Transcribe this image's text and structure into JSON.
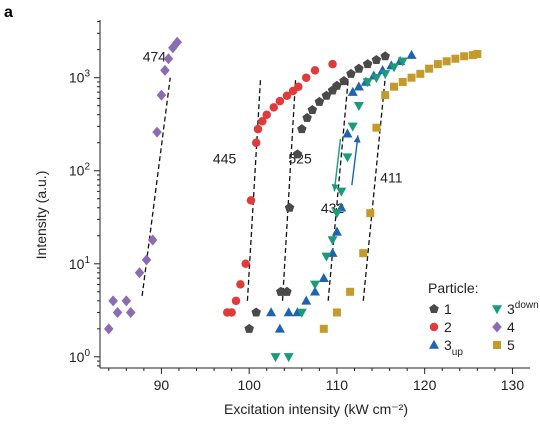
{
  "panel_label": "a",
  "chart_data": {
    "type": "scatter",
    "title": "",
    "xlabel": "Excitation intensity (kW cm⁻²)",
    "ylabel": "Intensity (a.u.)",
    "xlim": [
      83,
      132
    ],
    "ylim_log10": [
      -0.12,
      3.62
    ],
    "yscale": "log",
    "x_ticks": [
      90,
      100,
      110,
      120,
      130
    ],
    "y_ticks": [
      {
        "exp": 0,
        "base": "10",
        "sup": "0"
      },
      {
        "exp": 1,
        "base": "10",
        "sup": "1"
      },
      {
        "exp": 2,
        "base": "10",
        "sup": "2"
      },
      {
        "exp": 3,
        "base": "10",
        "sup": "3"
      }
    ],
    "legend": {
      "title": "Particle:",
      "position": "bottom-right",
      "entries": [
        {
          "series": "1",
          "label": "1"
        },
        {
          "series": "3down",
          "label": "3",
          "sub": "down"
        },
        {
          "series": "2",
          "label": "2"
        },
        {
          "series": "4",
          "label": "4"
        },
        {
          "series": "3up",
          "label": "3",
          "sub": "up"
        },
        {
          "series": "5",
          "label": "5"
        }
      ]
    },
    "annotations": [
      {
        "text": "474",
        "x": 89.2,
        "y": 1500
      },
      {
        "text": "445",
        "x": 97.2,
        "y": 120
      },
      {
        "text": "525",
        "x": 105.8,
        "y": 120
      },
      {
        "text": "432",
        "x": 109.5,
        "y": 35
      },
      {
        "text": "411",
        "x": 116.2,
        "y": 75
      }
    ],
    "threshold_lines": [
      {
        "x1": 87.8,
        "y1": 4.5,
        "x2": 91.0,
        "y2": 1000
      },
      {
        "x1": 99.8,
        "y1": 4.0,
        "x2": 101.3,
        "y2": 1000
      },
      {
        "x1": 103.8,
        "y1": 4.0,
        "x2": 105.3,
        "y2": 1000
      },
      {
        "x1": 109.0,
        "y1": 4.0,
        "x2": 111.3,
        "y2": 1000
      },
      {
        "x1": 113.0,
        "y1": 4.0,
        "x2": 115.5,
        "y2": 1000
      }
    ],
    "arrows": [
      {
        "direction": "down",
        "x1": 110.4,
        "y1": 220,
        "x2": 109.7,
        "y2": 60
      },
      {
        "direction": "up",
        "x1": 111.7,
        "y1": 70,
        "x2": 112.4,
        "y2": 240
      }
    ],
    "series": [
      {
        "name": "1",
        "marker": "pentagon",
        "color": "#4a4a4a",
        "x": [
          100,
          100.8,
          103.6,
          104.3,
          104.6,
          105.5,
          106,
          106.6,
          107.2,
          108,
          108.8,
          109.5,
          110,
          110.8,
          111.6,
          112.5,
          113.5,
          114.5,
          115.5
        ],
        "y": [
          2,
          3,
          5,
          5,
          40,
          150,
          280,
          370,
          450,
          550,
          640,
          730,
          820,
          920,
          1100,
          1250,
          1400,
          1550,
          1700
        ]
      },
      {
        "name": "2",
        "marker": "circle",
        "color": "#e13a3a",
        "x": [
          97.5,
          98,
          98.5,
          99,
          99.6,
          100.2,
          100.8,
          101,
          101.5,
          102,
          102.8,
          103.5,
          104.3,
          105,
          105.6,
          106.5,
          107.5,
          109.5
        ],
        "y": [
          3,
          3,
          4,
          6,
          10,
          48,
          200,
          280,
          340,
          400,
          480,
          560,
          640,
          720,
          800,
          1000,
          1200,
          1400
        ]
      },
      {
        "name": "3up",
        "marker": "triangle-up",
        "color": "#1f63b0",
        "x": [
          102.5,
          103.5,
          104.5,
          105.5,
          106.5,
          107.5,
          108.5,
          109.5,
          110,
          110.5,
          111.2,
          111.8,
          112.5,
          113.3,
          114.2,
          115.2,
          116.2,
          117.2,
          118.5
        ],
        "y": [
          3,
          2,
          3,
          3,
          4,
          5,
          7,
          13,
          22,
          40,
          250,
          700,
          800,
          900,
          1050,
          1200,
          1350,
          1500,
          1750
        ]
      },
      {
        "name": "3down",
        "marker": "triangle-down",
        "color": "#1a9c78",
        "x": [
          117.5,
          116.5,
          115.5,
          114.5,
          113.5,
          112.5,
          111.8,
          111.2,
          110.5,
          110,
          109.5,
          108.8,
          107.5,
          106,
          104.5,
          103
        ],
        "y": [
          1500,
          1300,
          1100,
          1000,
          900,
          500,
          300,
          140,
          60,
          35,
          18,
          12,
          6,
          3,
          1,
          1
        ]
      },
      {
        "name": "4",
        "marker": "diamond",
        "color": "#8b6bb1",
        "x": [
          84,
          84.5,
          85,
          86,
          86.5,
          87.5,
          88.3,
          89,
          89.5,
          90,
          90.4,
          90.8,
          91.3,
          91.8
        ],
        "y": [
          2,
          4,
          3,
          4,
          3,
          8,
          11,
          18,
          260,
          650,
          1200,
          1600,
          2100,
          2400
        ]
      },
      {
        "name": "5",
        "marker": "square",
        "color": "#c49a2a",
        "x": [
          108.5,
          110,
          111.5,
          113,
          113.8,
          114.5,
          115.5,
          116.5,
          117.5,
          118.5,
          119.5,
          120.5,
          121.5,
          122.5,
          123.5,
          124.5,
          125.5,
          126
        ],
        "y": [
          2,
          3,
          5,
          13,
          35,
          290,
          650,
          800,
          900,
          1000,
          1100,
          1250,
          1400,
          1500,
          1600,
          1700,
          1750,
          1800
        ]
      }
    ]
  }
}
